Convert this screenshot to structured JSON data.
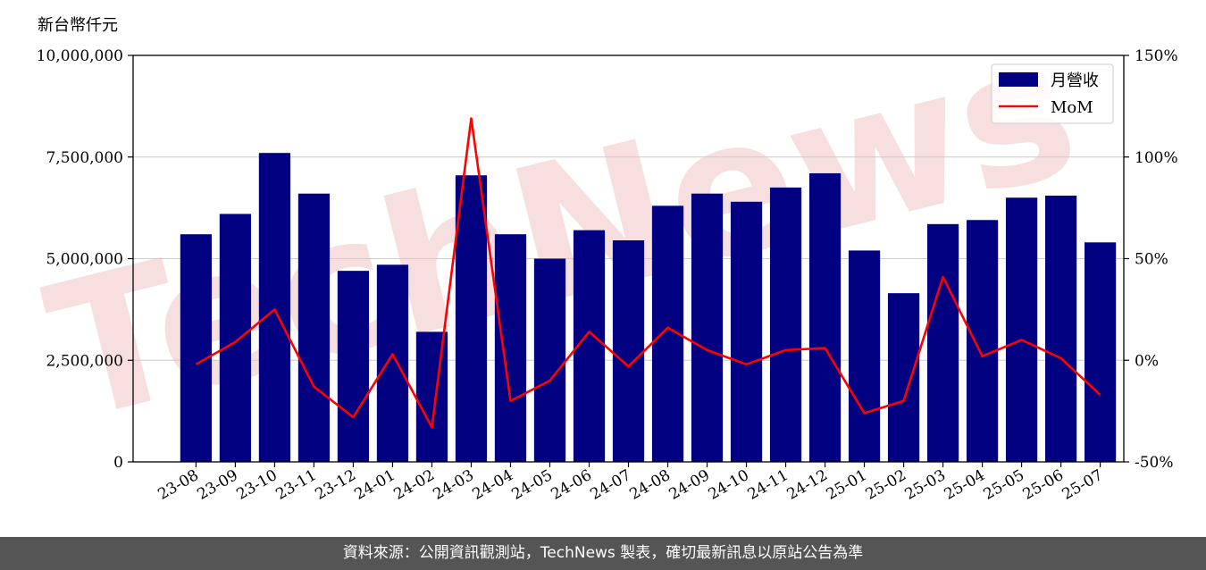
{
  "header": {
    "unit_label": "新台幣仟元"
  },
  "footer": {
    "source_text": "資料來源：公開資訊觀測站，TechNews 製表，確切最新訊息以原站公告為準"
  },
  "watermark": {
    "text": "TechNews",
    "color": "#f3c6c6"
  },
  "chart_data": {
    "type": "bar",
    "categories": [
      "23-08",
      "23-09",
      "23-10",
      "23-11",
      "23-12",
      "24-01",
      "24-02",
      "24-03",
      "24-04",
      "24-05",
      "24-06",
      "24-07",
      "24-08",
      "24-09",
      "24-10",
      "24-11",
      "24-12",
      "25-01",
      "25-02",
      "25-03",
      "25-04",
      "25-05",
      "25-06",
      "25-07"
    ],
    "series": [
      {
        "name": "月營收",
        "type": "bar",
        "axis": "left",
        "color": "#000080",
        "values": [
          5600000,
          6100000,
          7600000,
          6600000,
          4700000,
          4850000,
          3200000,
          7050000,
          5600000,
          5000000,
          5700000,
          5450000,
          6300000,
          6600000,
          6400000,
          6750000,
          7100000,
          5200000,
          4150000,
          5850000,
          5950000,
          6500000,
          6550000,
          5400000
        ]
      },
      {
        "name": "MoM",
        "type": "line",
        "axis": "right",
        "color": "#ff0000",
        "values": [
          -2,
          9,
          25,
          -13,
          -28,
          3,
          -33,
          119,
          -20,
          -10,
          14,
          -3,
          16,
          5,
          -2,
          5,
          6,
          -26,
          -20,
          41,
          2,
          10,
          1,
          -17
        ]
      }
    ],
    "y_left": {
      "ylim": [
        0,
        10000000
      ],
      "ticks": [
        "0",
        "2,500,000",
        "5,000,000",
        "7,500,000",
        "10,000,000"
      ]
    },
    "y_right": {
      "ylim": [
        -50,
        150
      ],
      "ticks": [
        "-50%",
        "0%",
        "50%",
        "100%",
        "150%"
      ]
    },
    "grid": true,
    "legend": "top-right"
  }
}
